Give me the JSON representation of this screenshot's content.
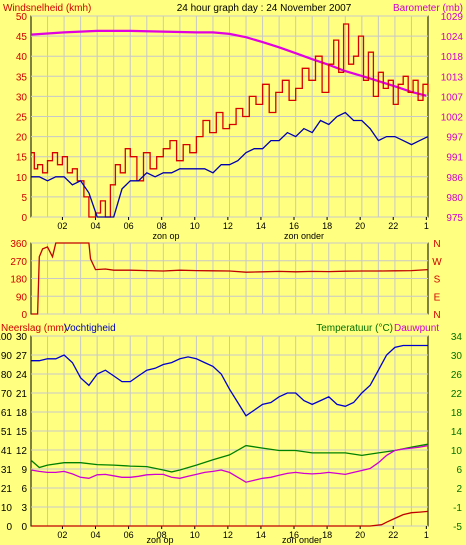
{
  "colors": {
    "background": "#FFFF80",
    "plot_background": "#FFFF80",
    "grid": "#C8C8C8",
    "wind": "#D80000",
    "baro": "#E000E0",
    "avg_wind": "#0000B0",
    "direction": "#C00000",
    "humidity": "#0000D0",
    "temperature": "#008000",
    "dewpoint": "#D000D0",
    "rain": "#C00000",
    "label_red": "#D00000",
    "label_green": "#007000"
  },
  "chart_data": [
    {
      "id": "wind_baro",
      "type": "line",
      "title": "24 hour graph day : 24 November 2007",
      "left_label": "Windsnelheid (kmh)",
      "right_label": "Barometer (mb)",
      "y_left_ticks": [
        "0",
        "5",
        "10",
        "15",
        "20",
        "25",
        "30",
        "35",
        "40",
        "45",
        "50"
      ],
      "y_left_range": [
        0,
        50
      ],
      "y_right_ticks": [
        "975",
        "980",
        "986",
        "991",
        "997",
        "1002",
        "1007",
        "1013",
        "1018",
        "1024",
        "1029"
      ],
      "y_right_range": [
        975,
        1029
      ],
      "x_ticks": [
        "02",
        "04",
        "06",
        "08",
        "10",
        "12",
        "14",
        "16",
        "18",
        "20",
        "22",
        "1"
      ],
      "x_range": [
        0,
        24
      ],
      "annotations": [
        "zon op",
        "zon onder"
      ],
      "series": [
        {
          "key": "baro",
          "axis": "right",
          "x": [
            0,
            2,
            4,
            6,
            8,
            10,
            11,
            12,
            13,
            14,
            15,
            16,
            17,
            18,
            19,
            20,
            21,
            22,
            23,
            23.9
          ],
          "y": [
            1024,
            1024.6,
            1025,
            1025,
            1024.8,
            1024.6,
            1024.6,
            1024.2,
            1023.3,
            1022,
            1020.6,
            1019,
            1017.4,
            1015.9,
            1014.2,
            1012.9,
            1011.5,
            1010.1,
            1008.6,
            1007.6
          ]
        },
        {
          "key": "wind",
          "axis": "left",
          "x": [
            0,
            0.2,
            0.4,
            0.7,
            1,
            1.3,
            1.6,
            1.9,
            2.2,
            2.5,
            2.8,
            3.2,
            3.5,
            3.9,
            4.2,
            4.5,
            4.8,
            5.1,
            5.4,
            5.7,
            6,
            6.4,
            6.8,
            7.2,
            7.6,
            8,
            8.4,
            8.8,
            9.2,
            9.6,
            10,
            10.4,
            10.8,
            11.2,
            11.6,
            12,
            12.4,
            12.8,
            13.2,
            13.6,
            14,
            14.4,
            14.8,
            15.2,
            15.6,
            16,
            16.4,
            16.8,
            17.2,
            17.6,
            18,
            18.3,
            18.6,
            18.9,
            19.2,
            19.5,
            19.8,
            20.1,
            20.4,
            20.7,
            21,
            21.3,
            21.6,
            21.9,
            22.2,
            22.5,
            22.8,
            23.1,
            23.4,
            23.7,
            24
          ],
          "y": [
            16,
            12,
            13,
            11,
            14,
            16,
            13,
            15,
            11,
            12,
            9,
            5,
            0,
            1,
            4,
            0,
            8,
            13,
            11,
            17,
            15,
            9,
            16,
            12,
            15,
            17,
            19,
            14,
            18,
            16,
            20,
            24,
            21,
            26,
            22,
            23,
            27,
            25,
            30,
            28,
            33,
            26,
            31,
            34,
            29,
            32,
            37,
            34,
            40,
            31,
            38,
            44,
            36,
            48,
            38,
            40,
            45,
            34,
            41,
            30,
            36,
            32,
            34,
            28,
            33,
            35,
            31,
            34,
            29,
            33,
            31
          ]
        },
        {
          "key": "avg_wind",
          "axis": "left",
          "x": [
            0,
            0.5,
            1,
            1.5,
            2,
            2.5,
            3,
            3.5,
            4,
            4.5,
            5,
            5.5,
            6,
            6.5,
            7,
            7.5,
            8,
            8.5,
            9,
            9.5,
            10,
            10.5,
            11,
            11.5,
            12,
            12.5,
            13,
            13.5,
            14,
            14.5,
            15,
            15.5,
            16,
            16.5,
            17,
            17.5,
            18,
            18.5,
            19,
            19.5,
            20,
            20.5,
            21,
            21.5,
            22,
            22.5,
            23,
            23.5,
            24
          ],
          "y": [
            10,
            10,
            9,
            10,
            10,
            8,
            9,
            6,
            0,
            0,
            0,
            7,
            9,
            9,
            11,
            10,
            11,
            11,
            12,
            12,
            12,
            12,
            11,
            13,
            13,
            14,
            16,
            17,
            17,
            19,
            19,
            21,
            20,
            22,
            21,
            24,
            23,
            25,
            26,
            24,
            24,
            22,
            19,
            20,
            20,
            19,
            18,
            19,
            20
          ]
        }
      ]
    },
    {
      "id": "wind_direction",
      "type": "line",
      "y_left_ticks": [
        "360",
        "270",
        "180",
        "90",
        "0"
      ],
      "y_left_range": [
        0,
        360
      ],
      "y_right_ticks": [
        "N",
        "W",
        "S",
        "E",
        "N"
      ],
      "x_range": [
        0,
        24
      ],
      "series": [
        {
          "key": "direction",
          "axis": "left",
          "x": [
            0,
            0.4,
            0.5,
            0.7,
            1,
            1.3,
            1.5,
            2,
            3,
            3.5,
            3.6,
            3.9,
            4.5,
            5,
            6,
            7,
            8,
            9,
            10,
            11,
            12,
            13,
            14,
            15,
            16,
            17,
            18,
            19,
            20,
            21,
            22,
            23,
            24
          ],
          "y": [
            0,
            0,
            290,
            330,
            340,
            290,
            360,
            360,
            360,
            360,
            280,
            225,
            228,
            222,
            222,
            220,
            218,
            222,
            220,
            219,
            218,
            212,
            214,
            216,
            214,
            216,
            215,
            217,
            218,
            218,
            219,
            220,
            225
          ]
        }
      ]
    },
    {
      "id": "rain_hum_temp",
      "type": "line",
      "left_label": "Neerslag (mm)",
      "left_label2": "Vochtigheid",
      "right_label": "Temperatuur (°C)",
      "right_label2": "Dauwpunt",
      "y_hum_ticks": [
        "100",
        "90",
        "80",
        "70",
        "61",
        "51",
        "41",
        "31",
        "21",
        "10",
        "0"
      ],
      "y_hum_range": [
        0,
        100
      ],
      "y_rain_ticks": [
        "30",
        "27",
        "24",
        "21",
        "18",
        "15",
        "12",
        "9",
        "6",
        "3",
        "0"
      ],
      "y_rain_range": [
        0,
        30
      ],
      "y_temp_ticks": [
        "34",
        "30",
        "26",
        "22",
        "18",
        "14",
        "10",
        "6",
        "2",
        "-1",
        "-5"
      ],
      "y_temp_range": [
        -5,
        34
      ],
      "x_ticks": [
        "02",
        "04",
        "06",
        "08",
        "10",
        "12",
        "14",
        "16",
        "18",
        "20",
        "22",
        "1"
      ],
      "x_range": [
        0,
        24
      ],
      "annotations": [
        "zon op",
        "zon onder"
      ],
      "series": [
        {
          "key": "humidity",
          "axis": "hum",
          "x": [
            0,
            0.5,
            1,
            1.5,
            2,
            2.5,
            3,
            3.5,
            4,
            4.5,
            5,
            5.5,
            6,
            6.5,
            7,
            7.5,
            8,
            8.5,
            9,
            9.5,
            10,
            10.5,
            11,
            11.5,
            12,
            12.5,
            13,
            13.5,
            14,
            14.5,
            15,
            15.5,
            16,
            16.5,
            17,
            17.5,
            18,
            18.5,
            19,
            19.5,
            20,
            20.5,
            21,
            21.5,
            22,
            22.5,
            23,
            23.5,
            24
          ],
          "y": [
            87,
            87,
            88,
            88,
            90,
            86,
            78,
            74,
            80,
            82,
            79,
            76,
            76,
            79,
            82,
            83,
            85,
            86,
            88,
            89,
            88,
            86,
            84,
            80,
            72,
            65,
            58,
            61,
            64,
            65,
            68,
            70,
            70,
            66,
            64,
            66,
            68,
            64,
            63,
            65,
            70,
            74,
            82,
            90,
            94,
            95,
            95,
            95,
            95
          ]
        },
        {
          "key": "temperature",
          "axis": "temp",
          "x": [
            0,
            0.5,
            1,
            2,
            3,
            4,
            5,
            6,
            7,
            8,
            8.5,
            9,
            10,
            11,
            12,
            13,
            14,
            15,
            16,
            17,
            18,
            19,
            20,
            21,
            22,
            23,
            24
          ],
          "y": [
            8.5,
            7,
            7.5,
            8,
            8,
            7.6,
            7.5,
            7.3,
            7.2,
            6.5,
            6.1,
            6.5,
            7.5,
            8.6,
            9.6,
            11.5,
            11,
            10.5,
            10.5,
            10,
            10,
            10,
            9.5,
            10,
            10.5,
            11.2,
            11.8
          ]
        },
        {
          "key": "dewpoint",
          "axis": "temp",
          "x": [
            0,
            0.5,
            1,
            1.5,
            2,
            2.5,
            3,
            3.5,
            4,
            4.5,
            5,
            5.5,
            6,
            6.5,
            7,
            7.5,
            8,
            8.5,
            9,
            9.5,
            10,
            10.5,
            11,
            11.5,
            12,
            12.5,
            13,
            13.5,
            14,
            14.5,
            15,
            15.5,
            16,
            16.5,
            17,
            17.5,
            18,
            18.5,
            19,
            19.5,
            20,
            20.5,
            21,
            21.5,
            22,
            22.5,
            23,
            23.5,
            24
          ],
          "y": [
            6.5,
            6.2,
            6,
            6,
            6.2,
            5.7,
            5,
            4.8,
            5.5,
            5.6,
            5.3,
            5,
            5,
            5.2,
            5.5,
            5.6,
            5.6,
            5,
            4.8,
            5.2,
            5.6,
            6,
            6.2,
            6.5,
            6,
            5,
            4,
            4.4,
            4.8,
            5,
            5.4,
            5.8,
            6,
            5.8,
            5.7,
            5.8,
            6,
            5.8,
            5.6,
            6,
            6.4,
            6.8,
            8,
            9.5,
            10.5,
            10.8,
            11,
            11.2,
            11.5
          ]
        },
        {
          "key": "rain",
          "axis": "rain",
          "x": [
            0,
            20.5,
            21.2,
            21.5,
            22,
            22.5,
            23,
            23.5,
            24
          ],
          "y": [
            0,
            0,
            0.2,
            0.6,
            1.2,
            1.8,
            2.1,
            2.2,
            2.3
          ]
        }
      ]
    }
  ]
}
